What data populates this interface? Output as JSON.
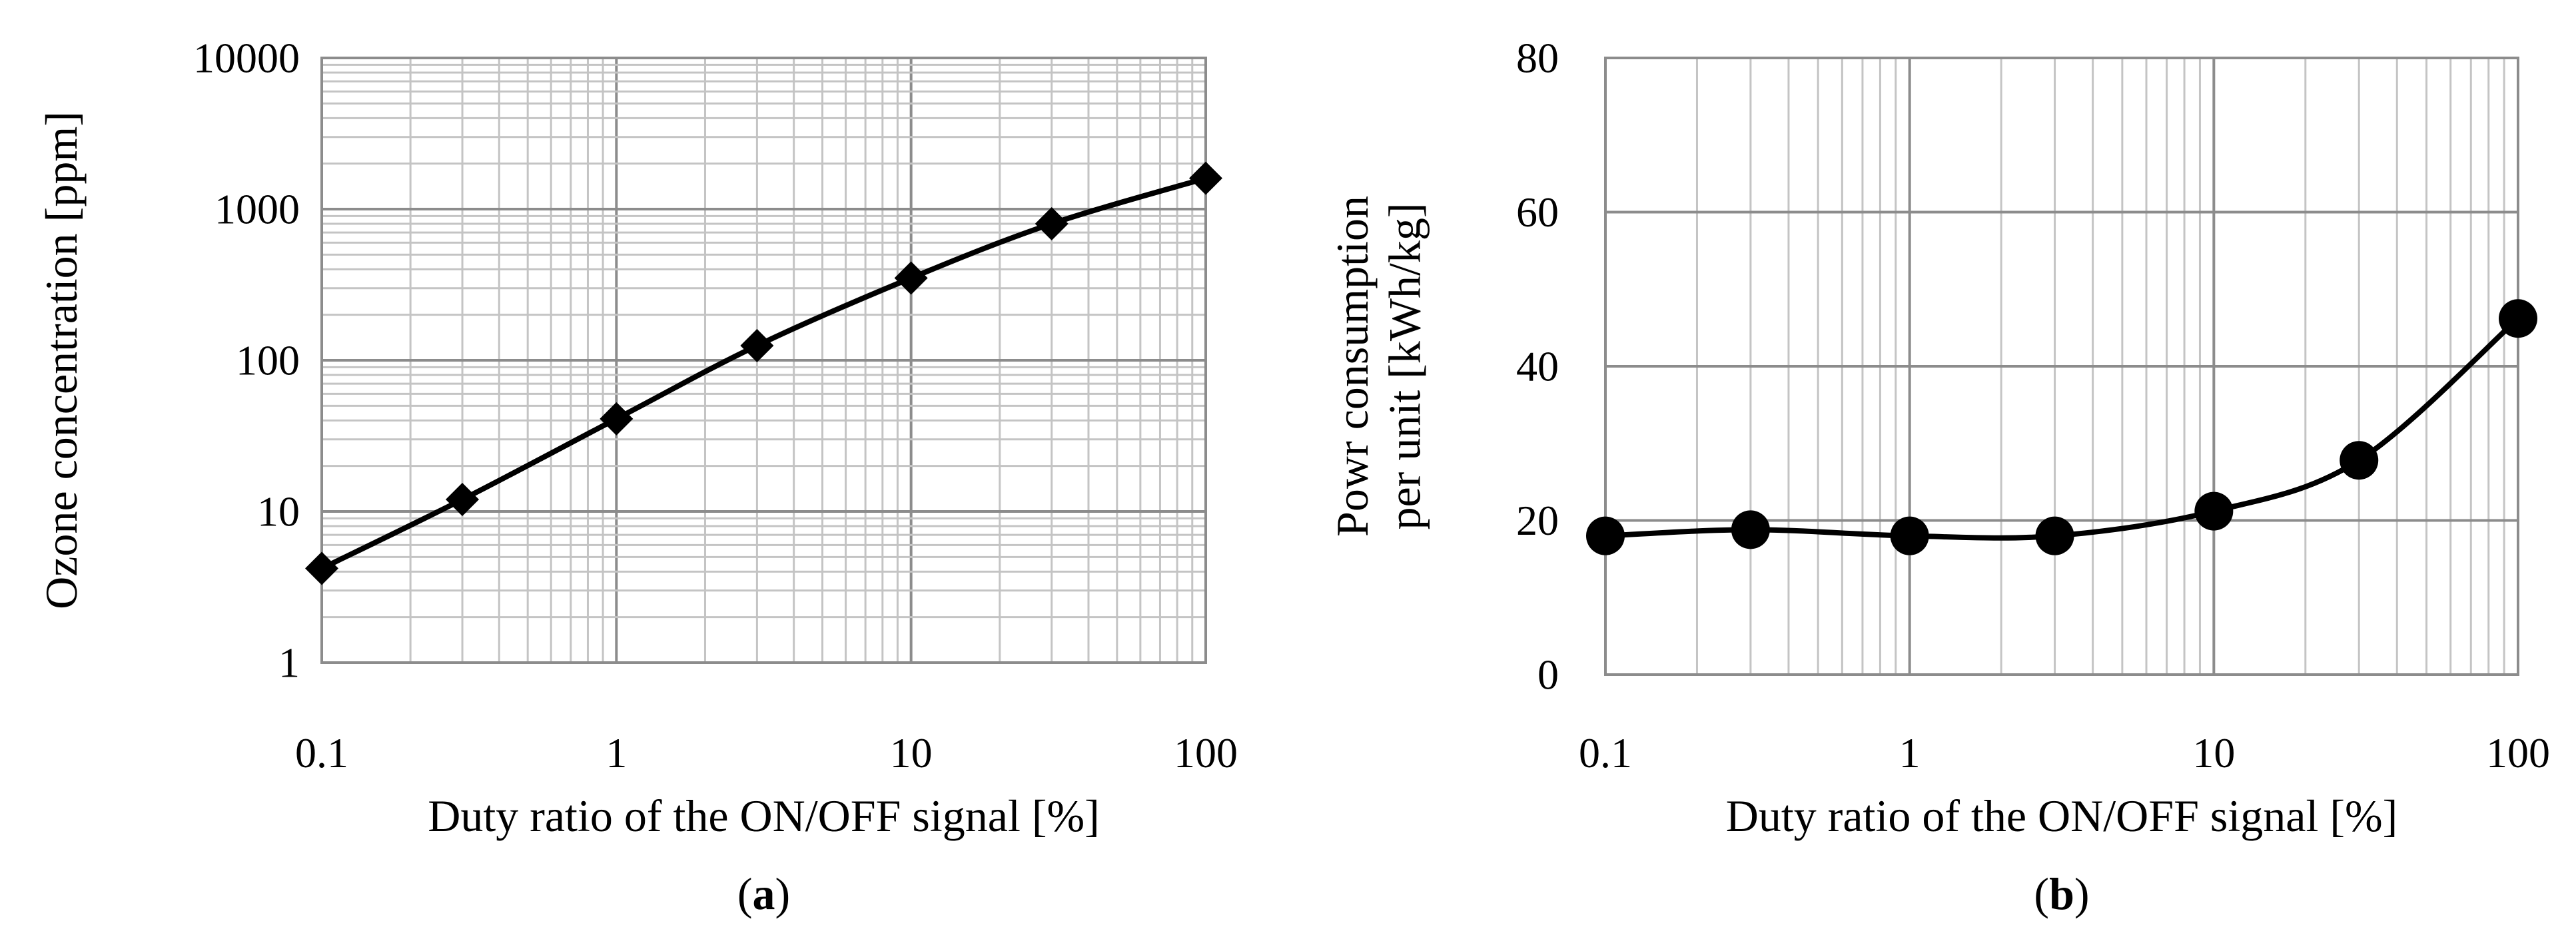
{
  "chart_data": [
    {
      "id": "a",
      "type": "line",
      "caption": {
        "open": "(",
        "letter": "a",
        "close": ")"
      },
      "xlabel": "Duty ratio of the ON/OFF signal  [%]",
      "ylabel": "Ozone concentration [ppm]",
      "xscale": "log",
      "yscale": "log",
      "xlim": [
        0.1,
        100
      ],
      "ylim": [
        1,
        10000
      ],
      "xticks": [
        "0.1",
        "1",
        "10",
        "100"
      ],
      "yticks": [
        "1",
        "10",
        "100",
        "1000",
        "10000"
      ],
      "grid": true,
      "series": [
        {
          "marker": "diamond",
          "x": [
            0.1,
            0.3,
            1,
            3,
            10,
            30,
            100
          ],
          "y": [
            4.2,
            12,
            41,
            125,
            350,
            800,
            1600
          ]
        }
      ]
    },
    {
      "id": "b",
      "type": "line",
      "caption": {
        "open": "(",
        "letter": "b",
        "close": ")"
      },
      "xlabel": "Duty ratio of the ON/OFF signal  [%]",
      "ylabel": [
        "Powr consumption",
        "per unit   [kWh/kg]"
      ],
      "xscale": "log",
      "yscale": "linear",
      "xlim": [
        0.1,
        100
      ],
      "ylim": [
        0,
        80
      ],
      "xticks": [
        "0.1",
        "1",
        "10",
        "100"
      ],
      "yticks": [
        "0",
        "20",
        "40",
        "60",
        "80"
      ],
      "grid": true,
      "series": [
        {
          "marker": "circle",
          "x": [
            0.1,
            0.3,
            1,
            3,
            10,
            30,
            100
          ],
          "y": [
            18,
            18.8,
            18,
            18,
            21.2,
            27.8,
            46.2
          ]
        }
      ]
    }
  ]
}
